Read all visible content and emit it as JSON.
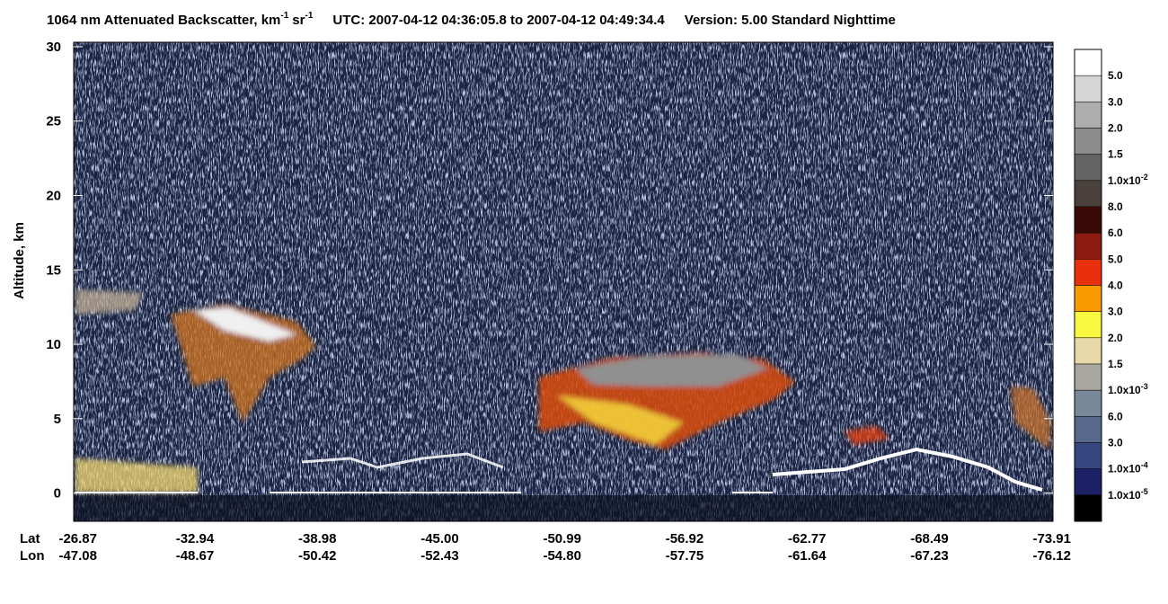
{
  "chart_data": {
    "type": "curtain",
    "title": {
      "main": "1064 nm Attenuated Backscatter, km",
      "sup1": "-1",
      "unit2": "sr",
      "sup2": "-1",
      "utc": "UTC:  2007-04-12 04:36:05.8  to  2007-04-12 04:49:34.4",
      "version": "Version: 5.00  Standard  Nighttime"
    },
    "y_label": "Altitude, km",
    "ylim": [
      -1.9,
      30.3
    ],
    "yticks": [
      0,
      5,
      10,
      15,
      20,
      25,
      30
    ],
    "x_row_labels": [
      "Lat",
      "Lon"
    ],
    "lat": [
      "-26.87",
      "-32.94",
      "-38.98",
      "-45.00",
      "-50.99",
      "-56.92",
      "-62.77",
      "-68.49",
      "-73.91"
    ],
    "lon": [
      "-47.08",
      "-48.67",
      "-50.42",
      "-52.43",
      "-54.80",
      "-57.75",
      "-61.64",
      "-67.23",
      "-76.12"
    ],
    "colorbar": {
      "colors": [
        "#ffffff",
        "#d6d6d6",
        "#aeaeae",
        "#8c8c8c",
        "#646464",
        "#4a403c",
        "#3a0a06",
        "#8c1a10",
        "#e8300c",
        "#f89a00",
        "#f8f840",
        "#e8d8a8",
        "#a8a8a0",
        "#788898",
        "#58688a",
        "#36467e",
        "#1c2064",
        "#000000"
      ],
      "labels": [
        "5.0",
        "3.0",
        "2.0",
        "1.5",
        {
          "text": "1.0x10",
          "sup": "-2"
        },
        "8.0",
        "6.0",
        "5.0",
        "4.0",
        "3.0",
        "2.0",
        "1.5",
        {
          "text": "1.0x10",
          "sup": "-3"
        },
        "6.0",
        "3.0",
        {
          "text": "1.0x10",
          "sup": "-4"
        },
        {
          "text": "1.0x10",
          "sup": "-5"
        }
      ]
    }
  }
}
